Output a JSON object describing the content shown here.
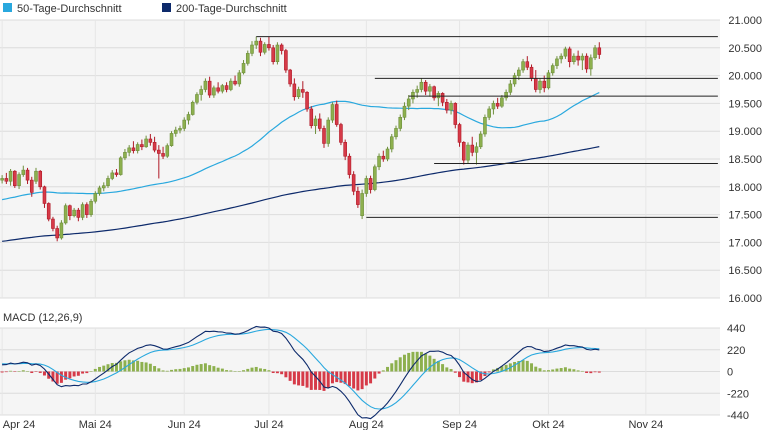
{
  "chart_data": {
    "type": "candlestick",
    "legend": [
      {
        "name": "50-Tage-Durchschnitt",
        "color": "#29a8de"
      },
      {
        "name": "200-Tage-Durchschnitt",
        "color": "#0d2a6b"
      }
    ],
    "price_axis": {
      "ylim": [
        16.0,
        21.0
      ],
      "ticks": [
        "21.000",
        "20.500",
        "20.000",
        "19.500",
        "19.000",
        "18.500",
        "18.000",
        "17.500",
        "17.000",
        "16.500",
        "16.000"
      ]
    },
    "macd_title": "MACD (12,26,9)",
    "macd_axis": {
      "ylim": [
        -440,
        440
      ],
      "ticks": [
        "440",
        "220",
        "0",
        "-220",
        "-440"
      ]
    },
    "x_ticks": [
      {
        "label": "Apr 24",
        "idx": 0
      },
      {
        "label": "Mai 24",
        "idx": 22
      },
      {
        "label": "Jun 24",
        "idx": 43
      },
      {
        "label": "Jul 24",
        "idx": 63
      },
      {
        "label": "Aug 24",
        "idx": 86
      },
      {
        "label": "Sep 24",
        "idx": 108
      },
      {
        "label": "Okt 24",
        "idx": 129
      },
      {
        "label": "Nov 24",
        "idx": 152
      }
    ],
    "n_slots": 170,
    "candles": [
      [
        18.12,
        18.21,
        18.06,
        18.15
      ],
      [
        18.15,
        18.25,
        18.05,
        18.1
      ],
      [
        18.1,
        18.32,
        18.02,
        18.28
      ],
      [
        18.28,
        18.3,
        17.98,
        18.02
      ],
      [
        18.02,
        18.26,
        17.96,
        18.22
      ],
      [
        18.22,
        18.38,
        18.18,
        18.3
      ],
      [
        18.3,
        18.34,
        18.05,
        18.12
      ],
      [
        18.12,
        18.18,
        17.82,
        17.9
      ],
      [
        18.1,
        18.34,
        18.05,
        18.28
      ],
      [
        18.28,
        18.3,
        17.95,
        18.0
      ],
      [
        18.0,
        18.02,
        17.62,
        17.7
      ],
      [
        17.7,
        17.72,
        17.38,
        17.42
      ],
      [
        17.42,
        17.46,
        17.2,
        17.25
      ],
      [
        17.25,
        17.3,
        17.02,
        17.08
      ],
      [
        17.08,
        17.4,
        17.05,
        17.35
      ],
      [
        17.35,
        17.7,
        17.32,
        17.66
      ],
      [
        17.66,
        17.68,
        17.4,
        17.48
      ],
      [
        17.48,
        17.62,
        17.45,
        17.58
      ],
      [
        17.58,
        17.62,
        17.38,
        17.45
      ],
      [
        17.45,
        17.72,
        17.4,
        17.68
      ],
      [
        17.68,
        17.72,
        17.44,
        17.5
      ],
      [
        17.5,
        17.78,
        17.46,
        17.74
      ],
      [
        17.74,
        17.92,
        17.7,
        17.88
      ],
      [
        17.88,
        18.02,
        17.84,
        17.98
      ],
      [
        17.98,
        18.08,
        17.92,
        18.02
      ],
      [
        18.02,
        18.2,
        17.98,
        18.15
      ],
      [
        18.15,
        18.3,
        18.12,
        18.25
      ],
      [
        18.25,
        18.32,
        18.18,
        18.22
      ],
      [
        18.22,
        18.55,
        18.2,
        18.52
      ],
      [
        18.52,
        18.68,
        18.48,
        18.62
      ],
      [
        18.62,
        18.75,
        18.55,
        18.7
      ],
      [
        18.7,
        18.82,
        18.6,
        18.65
      ],
      [
        18.65,
        18.8,
        18.6,
        18.76
      ],
      [
        18.76,
        18.85,
        18.66,
        18.72
      ],
      [
        18.72,
        18.92,
        18.7,
        18.86
      ],
      [
        18.86,
        18.95,
        18.74,
        18.8
      ],
      [
        18.8,
        18.9,
        18.62,
        18.66
      ],
      [
        18.66,
        18.75,
        18.15,
        18.6
      ],
      [
        18.6,
        18.72,
        18.5,
        18.55
      ],
      [
        18.55,
        18.78,
        18.52,
        18.74
      ],
      [
        18.74,
        19.0,
        18.72,
        18.96
      ],
      [
        18.96,
        19.08,
        18.9,
        19.02
      ],
      [
        19.02,
        19.1,
        18.96,
        19.05
      ],
      [
        19.05,
        19.25,
        19.0,
        19.2
      ],
      [
        19.2,
        19.35,
        19.12,
        19.3
      ],
      [
        19.3,
        19.55,
        19.28,
        19.52
      ],
      [
        19.52,
        19.7,
        19.48,
        19.66
      ],
      [
        19.66,
        19.82,
        19.55,
        19.75
      ],
      [
        19.75,
        19.95,
        19.7,
        19.9
      ],
      [
        19.9,
        19.98,
        19.6,
        19.65
      ],
      [
        19.65,
        19.82,
        19.6,
        19.78
      ],
      [
        19.78,
        19.88,
        19.68,
        19.72
      ],
      [
        19.72,
        19.85,
        19.68,
        19.82
      ],
      [
        19.82,
        19.88,
        19.7,
        19.75
      ],
      [
        19.75,
        19.95,
        19.72,
        19.9
      ],
      [
        19.9,
        20.0,
        19.82,
        19.85
      ],
      [
        19.85,
        20.1,
        19.8,
        20.05
      ],
      [
        20.05,
        20.28,
        20.02,
        20.22
      ],
      [
        20.22,
        20.45,
        20.18,
        20.4
      ],
      [
        20.4,
        20.62,
        20.35,
        20.55
      ],
      [
        20.55,
        20.7,
        20.48,
        20.62
      ],
      [
        20.62,
        20.68,
        20.35,
        20.42
      ],
      [
        20.42,
        20.6,
        20.38,
        20.56
      ],
      [
        20.56,
        20.7,
        20.45,
        20.5
      ],
      [
        20.5,
        20.55,
        20.2,
        20.25
      ],
      [
        20.25,
        20.6,
        20.2,
        20.55
      ],
      [
        20.55,
        20.58,
        20.38,
        20.45
      ],
      [
        20.45,
        20.48,
        20.05,
        20.1
      ],
      [
        20.1,
        20.12,
        19.8,
        19.85
      ],
      [
        19.85,
        19.95,
        19.55,
        19.62
      ],
      [
        19.62,
        19.8,
        19.58,
        19.75
      ],
      [
        19.75,
        19.9,
        19.6,
        19.7
      ],
      [
        19.7,
        19.72,
        19.35,
        19.4
      ],
      [
        19.4,
        19.45,
        19.05,
        19.1
      ],
      [
        19.1,
        19.28,
        18.95,
        19.22
      ],
      [
        19.22,
        19.32,
        19.0,
        19.05
      ],
      [
        19.05,
        19.1,
        18.7,
        18.78
      ],
      [
        18.78,
        19.25,
        18.72,
        19.2
      ],
      [
        19.2,
        19.52,
        19.15,
        19.48
      ],
      [
        19.48,
        19.55,
        19.08,
        19.12
      ],
      [
        19.12,
        19.15,
        18.75,
        18.8
      ],
      [
        18.8,
        18.85,
        18.48,
        18.55
      ],
      [
        18.55,
        18.6,
        18.15,
        18.22
      ],
      [
        18.22,
        18.28,
        17.85,
        17.92
      ],
      [
        17.92,
        18.0,
        17.62,
        17.68
      ],
      [
        17.48,
        17.95,
        17.42,
        17.88
      ],
      [
        17.88,
        18.2,
        17.82,
        18.15
      ],
      [
        18.15,
        18.2,
        17.88,
        17.95
      ],
      [
        17.95,
        18.4,
        17.92,
        18.36
      ],
      [
        18.36,
        18.6,
        18.3,
        18.55
      ],
      [
        18.55,
        18.65,
        18.45,
        18.5
      ],
      [
        18.5,
        18.72,
        18.46,
        18.68
      ],
      [
        18.68,
        18.95,
        18.62,
        18.9
      ],
      [
        18.9,
        19.1,
        18.85,
        19.05
      ],
      [
        19.05,
        19.3,
        19.0,
        19.25
      ],
      [
        19.25,
        19.52,
        19.2,
        19.45
      ],
      [
        19.45,
        19.65,
        19.38,
        19.58
      ],
      [
        19.58,
        19.75,
        19.5,
        19.7
      ],
      [
        19.7,
        19.82,
        19.6,
        19.75
      ],
      [
        19.75,
        19.95,
        19.7,
        19.88
      ],
      [
        19.88,
        19.92,
        19.65,
        19.72
      ],
      [
        19.72,
        19.85,
        19.62,
        19.8
      ],
      [
        19.8,
        19.82,
        19.55,
        19.6
      ],
      [
        19.6,
        19.72,
        19.45,
        19.68
      ],
      [
        19.68,
        19.7,
        19.45,
        19.52
      ],
      [
        19.52,
        19.58,
        19.32,
        19.38
      ],
      [
        19.38,
        19.55,
        19.3,
        19.5
      ],
      [
        19.5,
        19.52,
        19.05,
        19.12
      ],
      [
        19.12,
        19.15,
        18.72,
        18.8
      ],
      [
        18.8,
        18.82,
        18.4,
        18.48
      ],
      [
        18.48,
        18.8,
        18.42,
        18.75
      ],
      [
        18.75,
        18.9,
        18.55,
        18.62
      ],
      [
        18.62,
        18.8,
        18.4,
        18.72
      ],
      [
        18.72,
        19.0,
        18.68,
        18.95
      ],
      [
        18.95,
        19.3,
        18.9,
        19.25
      ],
      [
        19.25,
        19.45,
        19.2,
        19.4
      ],
      [
        19.4,
        19.55,
        19.3,
        19.5
      ],
      [
        19.5,
        19.6,
        19.4,
        19.45
      ],
      [
        19.45,
        19.65,
        19.42,
        19.6
      ],
      [
        19.6,
        19.75,
        19.55,
        19.7
      ],
      [
        19.7,
        19.92,
        19.65,
        19.85
      ],
      [
        19.85,
        20.05,
        19.8,
        20.0
      ],
      [
        20.0,
        20.15,
        19.92,
        20.1
      ],
      [
        20.1,
        20.3,
        20.05,
        20.25
      ],
      [
        20.25,
        20.35,
        20.1,
        20.15
      ],
      [
        20.15,
        20.2,
        19.9,
        19.95
      ],
      [
        19.95,
        20.1,
        19.7,
        19.75
      ],
      [
        19.75,
        19.95,
        19.68,
        19.9
      ],
      [
        19.9,
        20.0,
        19.7,
        19.78
      ],
      [
        19.78,
        20.1,
        19.75,
        20.05
      ],
      [
        20.05,
        20.22,
        20.0,
        20.18
      ],
      [
        20.18,
        20.35,
        20.12,
        20.3
      ],
      [
        20.3,
        20.4,
        20.22,
        20.35
      ],
      [
        20.35,
        20.52,
        20.3,
        20.48
      ],
      [
        20.48,
        20.52,
        20.15,
        20.25
      ],
      [
        20.25,
        20.4,
        20.2,
        20.35
      ],
      [
        20.35,
        20.45,
        20.18,
        20.28
      ],
      [
        20.28,
        20.4,
        20.1,
        20.35
      ],
      [
        20.35,
        20.4,
        20.05,
        20.12
      ],
      [
        20.12,
        20.38,
        20.0,
        20.32
      ],
      [
        20.32,
        20.55,
        20.28,
        20.5
      ],
      [
        20.5,
        20.6,
        20.3,
        20.38
      ]
    ],
    "resistance_lines": [
      {
        "value": 20.7,
        "from_idx": 61,
        "to_idx": 169
      },
      {
        "value": 19.95,
        "from_idx": 89,
        "to_idx": 169
      },
      {
        "value": 19.63,
        "from_idx": 97,
        "to_idx": 169
      },
      {
        "value": 18.42,
        "from_idx": 103,
        "to_idx": 169
      },
      {
        "value": 17.45,
        "from_idx": 87,
        "to_idx": 169
      }
    ],
    "colors": {
      "up": "#6e8f3c",
      "up_fill": "#8db04e",
      "down": "#b01826",
      "down_fill": "#d63a48",
      "sma50": "#29a8de",
      "sma200": "#0d2a6b",
      "macd": "#0d2a6b",
      "signal": "#29a8de",
      "hist_up": "#8db04e",
      "hist_down": "#d63a48",
      "plot_bg": "#f5f5f5"
    }
  }
}
